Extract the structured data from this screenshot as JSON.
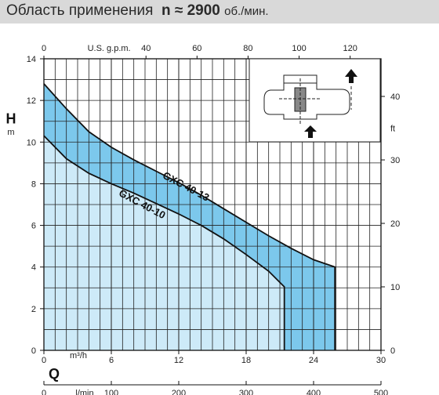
{
  "header": {
    "title": "Область применения",
    "speed_prefix": "n ≈",
    "speed_value": "2900",
    "speed_unit": "об./мин."
  },
  "colors": {
    "band_fill": "#7cc8ec",
    "area_fill": "#cdeaf8",
    "grid": "#222222",
    "header_bg": "#d9d9d9"
  },
  "chart_data": {
    "type": "area",
    "title": "Область применения n ≈ 2900 об./мин.",
    "xlabel": "Q",
    "ylabel": "H",
    "x_unit": "m³/h",
    "y_unit": "m",
    "xlim": [
      0,
      30
    ],
    "ylim": [
      0,
      14
    ],
    "x_ticks": [
      0,
      6,
      12,
      18,
      24,
      30
    ],
    "y_ticks": [
      0,
      2,
      4,
      6,
      8,
      10,
      12,
      14
    ],
    "grid": true,
    "secondary_axes": {
      "top": {
        "label": "U.S. g.p.m.",
        "ticks": [
          0,
          40,
          60,
          80,
          100,
          120
        ]
      },
      "bottom": {
        "label": "l/min",
        "ticks": [
          0,
          100,
          200,
          300,
          400,
          500
        ]
      },
      "right": {
        "label": "ft",
        "ticks": [
          0,
          10,
          20,
          30,
          40
        ]
      }
    },
    "series": [
      {
        "name": "GXC 40-13",
        "x": [
          0,
          2,
          4,
          6,
          8,
          10,
          12,
          14,
          16,
          18,
          20,
          22,
          24,
          25.9,
          25.9
        ],
        "y": [
          12.8,
          11.6,
          10.5,
          9.75,
          9.15,
          8.6,
          8.05,
          7.45,
          6.8,
          6.15,
          5.5,
          4.9,
          4.35,
          4.0,
          0
        ]
      },
      {
        "name": "GXC 40-10",
        "x": [
          0,
          2,
          4,
          6,
          8,
          10,
          12,
          14,
          16,
          18,
          20,
          21.4,
          21.4
        ],
        "y": [
          10.3,
          9.2,
          8.5,
          8.0,
          7.55,
          7.05,
          6.55,
          6.0,
          5.35,
          4.6,
          3.8,
          3.05,
          0
        ]
      }
    ]
  }
}
